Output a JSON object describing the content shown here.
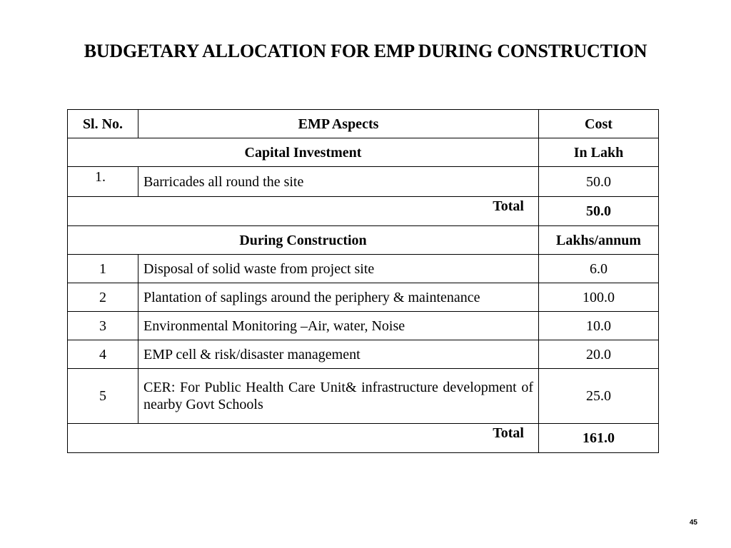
{
  "title": "BUDGETARY ALLOCATION FOR EMP DURING CONSTRUCTION",
  "table": {
    "headers": {
      "sl_no": "Sl. No.",
      "aspects": "EMP Aspects",
      "cost": "Cost"
    },
    "capital": {
      "label": "Capital Investment",
      "unit": "In Lakh",
      "rows": [
        {
          "no": "1.",
          "aspect": "Barricades all round the site",
          "cost": "50.0"
        }
      ],
      "total_label": "Total",
      "total_value": "50.0"
    },
    "construction": {
      "label": "During Construction",
      "unit": "Lakhs/annum",
      "rows": [
        {
          "no": "1",
          "aspect": "Disposal of solid waste from project site",
          "cost": "6.0"
        },
        {
          "no": "2",
          "aspect": "Plantation of saplings around the periphery & maintenance",
          "cost": "100.0"
        },
        {
          "no": "3",
          "aspect": "Environmental Monitoring –Air, water, Noise",
          "cost": "10.0"
        },
        {
          "no": "4",
          "aspect": "EMP cell & risk/disaster management",
          "cost": "20.0"
        },
        {
          "no": "5",
          "aspect": "CER: For Public Health Care Unit& infrastructure development of nearby Govt Schools",
          "cost": "25.0"
        }
      ],
      "total_label": "Total",
      "total_value": "161.0"
    }
  },
  "page_number": "45"
}
